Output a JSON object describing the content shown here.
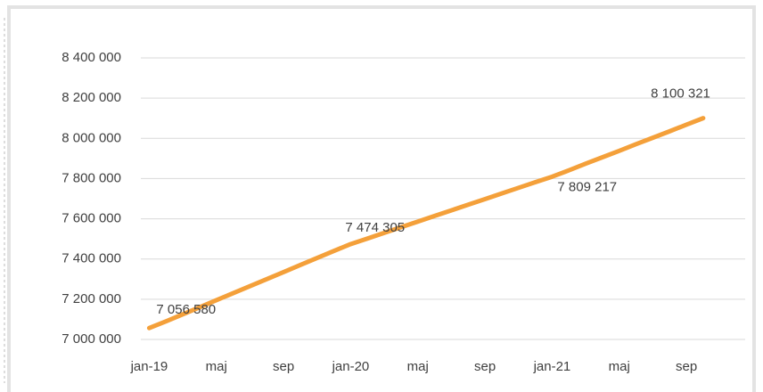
{
  "chart_data": {
    "type": "line",
    "categories": [
      "jan-19",
      null,
      null,
      null,
      "maj",
      null,
      null,
      null,
      "sep",
      null,
      null,
      null,
      "jan-20",
      null,
      null,
      null,
      "maj",
      null,
      null,
      null,
      "sep",
      null,
      null,
      null,
      "jan-21",
      null,
      null,
      null,
      "maj",
      null,
      null,
      null,
      "sep",
      null,
      null,
      null
    ],
    "series": [
      {
        "color": "#f4a03a",
        "values": [
          7056580,
          7090000,
          7125000,
          7160000,
          7195000,
          7230000,
          7265000,
          7300000,
          7335000,
          7370000,
          7405000,
          7440000,
          7474305,
          7502000,
          7530000,
          7558000,
          7586000,
          7614000,
          7642000,
          7670000,
          7698000,
          7726000,
          7754000,
          7782000,
          7809217,
          7841000,
          7874000,
          7906000,
          7938000,
          7971000,
          8003000,
          8035000,
          8068000,
          8100321,
          null,
          null
        ],
        "value_labels": [
          "7 056 580",
          null,
          null,
          null,
          null,
          null,
          null,
          null,
          null,
          null,
          null,
          null,
          "7 474 305",
          null,
          null,
          null,
          null,
          null,
          null,
          null,
          null,
          null,
          null,
          null,
          "7 809 217",
          null,
          null,
          null,
          null,
          null,
          null,
          null,
          null,
          "8 100 321",
          null,
          null
        ]
      }
    ],
    "ylim": [
      7000000,
      8400000
    ],
    "yticks": [
      {
        "value": 7000000,
        "label": "7 000 000"
      },
      {
        "value": 7200000,
        "label": "7 200 000"
      },
      {
        "value": 7400000,
        "label": "7 400 000"
      },
      {
        "value": 7600000,
        "label": "7 600 000"
      },
      {
        "value": 7800000,
        "label": "7 800 000"
      },
      {
        "value": 8000000,
        "label": "8 000 000"
      },
      {
        "value": 8200000,
        "label": "8 200 000"
      },
      {
        "value": 8400000,
        "label": "8 400 000"
      }
    ],
    "grid": true
  }
}
